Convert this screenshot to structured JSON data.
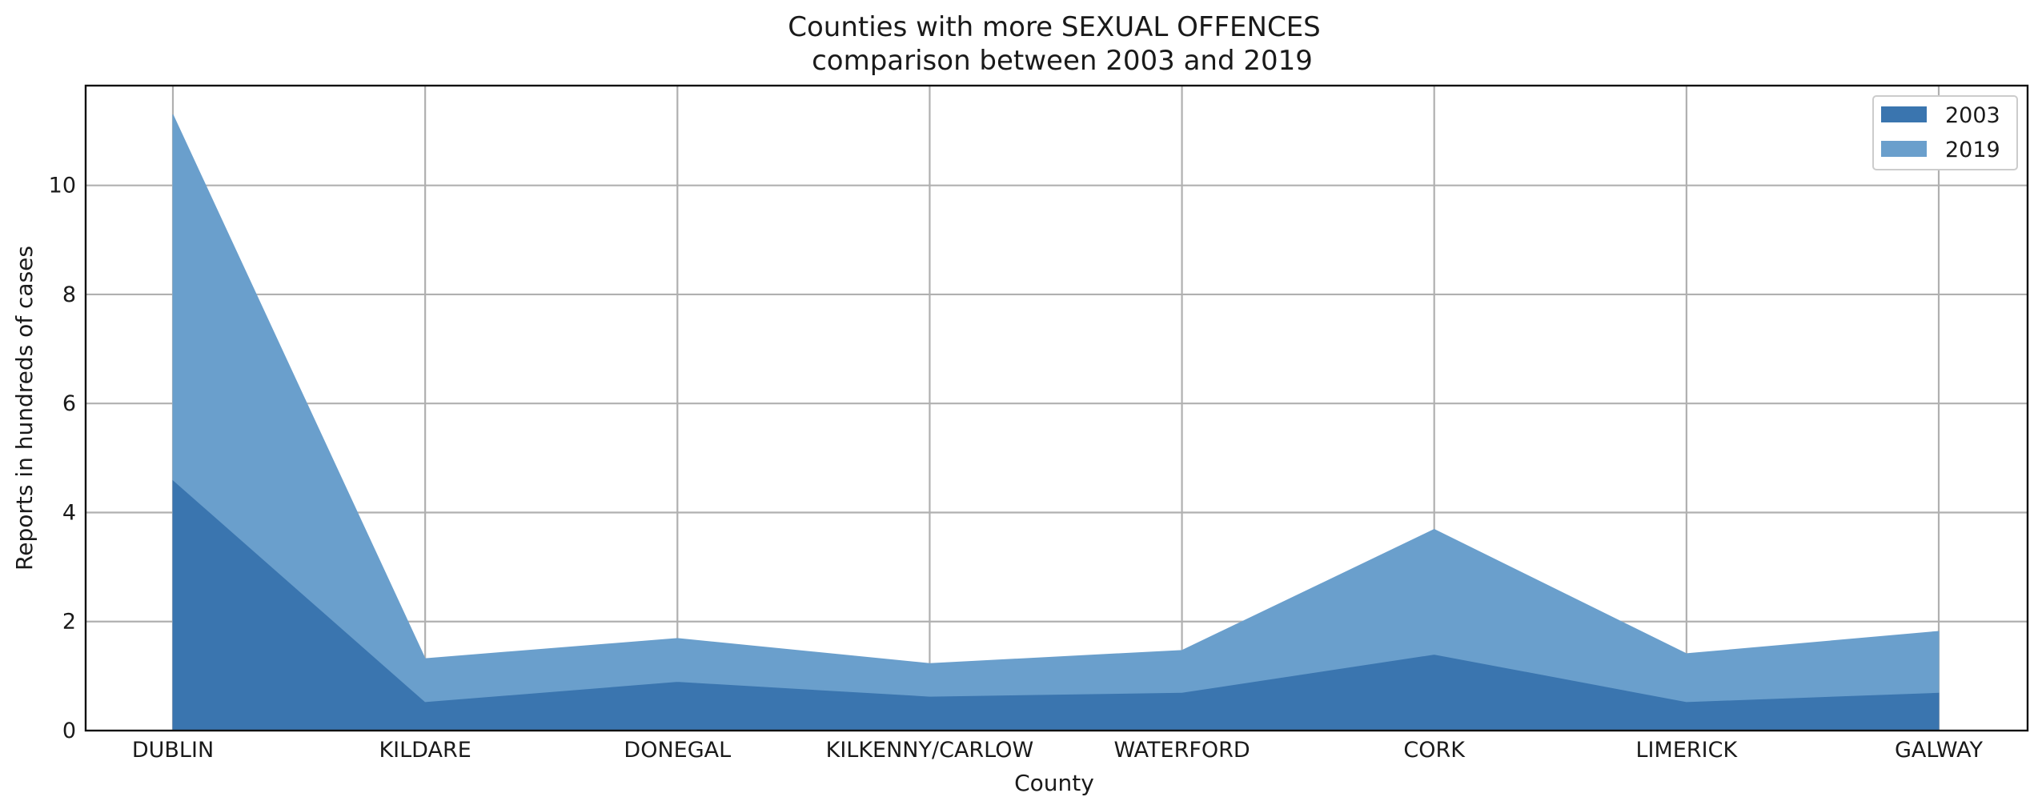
{
  "chart_data": {
    "type": "area",
    "stacked": true,
    "title_lines": [
      "Counties with more SEXUAL OFFENCES",
      "comparison between 2003 and 2019"
    ],
    "xlabel": "County",
    "ylabel": "Reports in hundreds of cases",
    "categories": [
      "DUBLIN",
      "KILDARE",
      "DONEGAL",
      "KILKENNY/CARLOW",
      "WATERFORD",
      "CORK",
      "LIMERICK",
      "GALWAY"
    ],
    "series": [
      {
        "name": "2003",
        "color": "#3a75af",
        "values": [
          4.6,
          0.53,
          0.9,
          0.63,
          0.7,
          1.4,
          0.53,
          0.7
        ]
      },
      {
        "name": "2019",
        "color": "#6a9fcc",
        "values": [
          6.7,
          0.79,
          0.79,
          0.6,
          0.77,
          2.29,
          0.88,
          1.12
        ]
      }
    ],
    "ylim": [
      0,
      11.83
    ],
    "yticks": [
      0,
      2,
      4,
      6,
      8,
      10
    ],
    "grid": true,
    "legend": "top-right"
  }
}
